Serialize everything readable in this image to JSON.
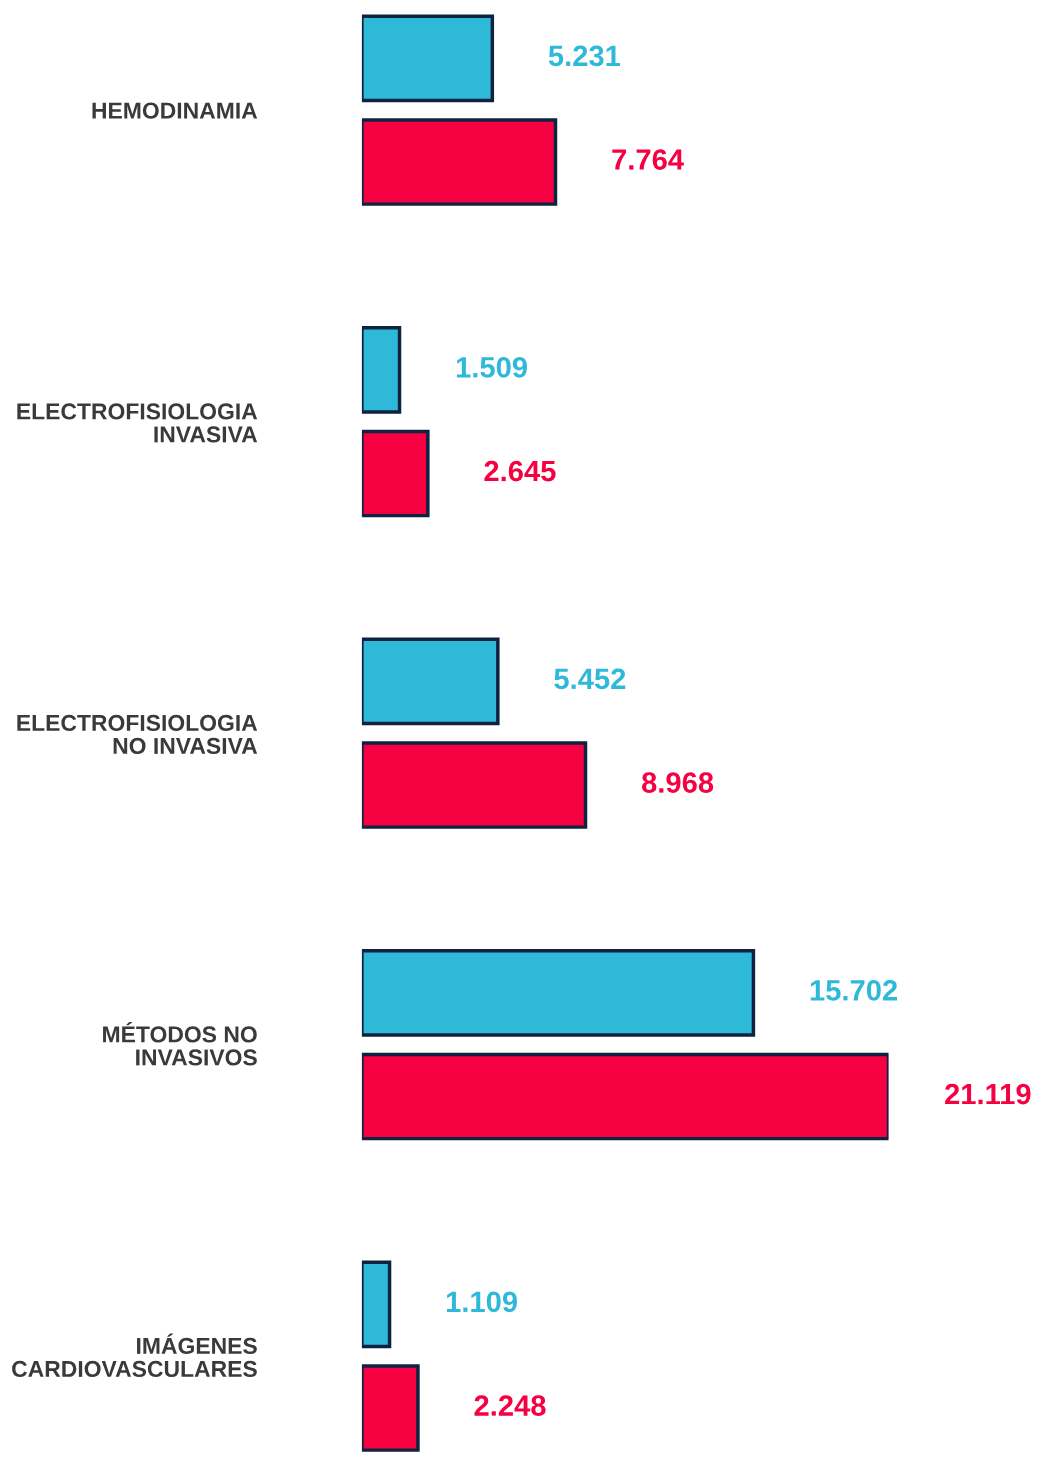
{
  "chart_data": {
    "type": "bar",
    "orientation": "horizontal",
    "categories": [
      "HEMODINAMIA",
      "ELECTROFISIOLOGIA\nINVASIVA",
      "ELECTROFISIOLOGIA\nNO INVASIVA",
      "MÉTODOS NO\nINVASIVOS",
      "IMÁGENES\nCARDIOVASCULARES"
    ],
    "series": [
      {
        "color": "#2eb9d9",
        "values": [
          5231,
          1509,
          5452,
          15702,
          1109
        ],
        "value_labels": [
          "5.231",
          "1.509",
          "5.452",
          "15.702",
          "1.109"
        ]
      },
      {
        "color": "#f50041",
        "values": [
          7764,
          2645,
          8968,
          21119,
          2248
        ],
        "value_labels": [
          "7.764",
          "2.645",
          "8.968",
          "21.119",
          "2.248"
        ]
      }
    ],
    "tick_labels": "y",
    "grid": false,
    "legend": false
  }
}
